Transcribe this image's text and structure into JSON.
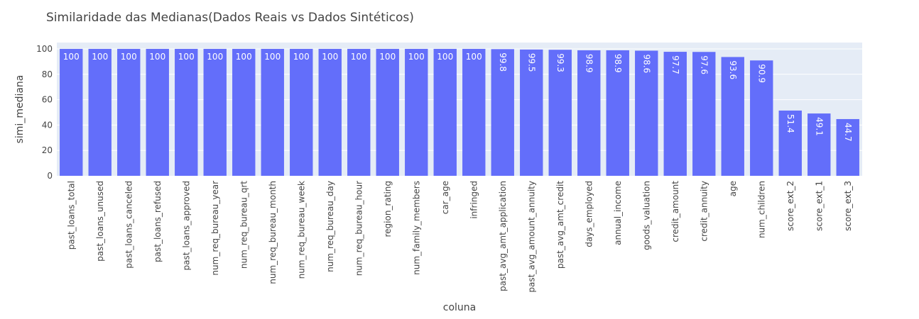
{
  "chart_data": {
    "type": "bar",
    "title": "Similaridade das Medianas(Dados Reais vs Dados Sintéticos)",
    "xlabel": "coluna",
    "ylabel": "simi_mediana",
    "ylim": [
      0,
      105
    ],
    "yticks": [
      0,
      20,
      40,
      60,
      80,
      100
    ],
    "grid": true,
    "legend": "none",
    "colors": {
      "bar": "#636efa",
      "plot_bg": "#e5ecf6",
      "grid": "#ffffff"
    },
    "categories": [
      "past_loans_total",
      "past_loans_unused",
      "past_loans_canceled",
      "past_loans_refused",
      "past_loans_approved",
      "num_req_bureau_year",
      "num_req_bureau_qrt",
      "num_req_bureau_month",
      "num_req_bureau_week",
      "num_req_bureau_day",
      "num_req_bureau_hour",
      "region_rating",
      "num_family_members",
      "car_age",
      "infringed",
      "past_avg_amt_application",
      "past_avg_amount_annuity",
      "past_avg_amt_credit",
      "days_employed",
      "annual_income",
      "goods_valuation",
      "credit_amount",
      "credit_annuity",
      "age",
      "num_children",
      "score_ext_2",
      "score_ext_1",
      "score_ext_3"
    ],
    "values": [
      100,
      100,
      100,
      100,
      100,
      100,
      100,
      100,
      100,
      100,
      100,
      100,
      100,
      100,
      100,
      99.8,
      99.5,
      99.3,
      98.9,
      98.9,
      98.6,
      97.7,
      97.6,
      93.6,
      90.9,
      51.4,
      49.1,
      44.7
    ],
    "labels": [
      "100",
      "100",
      "100",
      "100",
      "100",
      "100",
      "100",
      "100",
      "100",
      "100",
      "100",
      "100",
      "100",
      "100",
      "100",
      "99.8",
      "99.5",
      "99.3",
      "98.9",
      "98.9",
      "98.6",
      "97.7",
      "97.6",
      "93.6",
      "90.9",
      "51.4",
      "49.1",
      "44.7"
    ]
  }
}
